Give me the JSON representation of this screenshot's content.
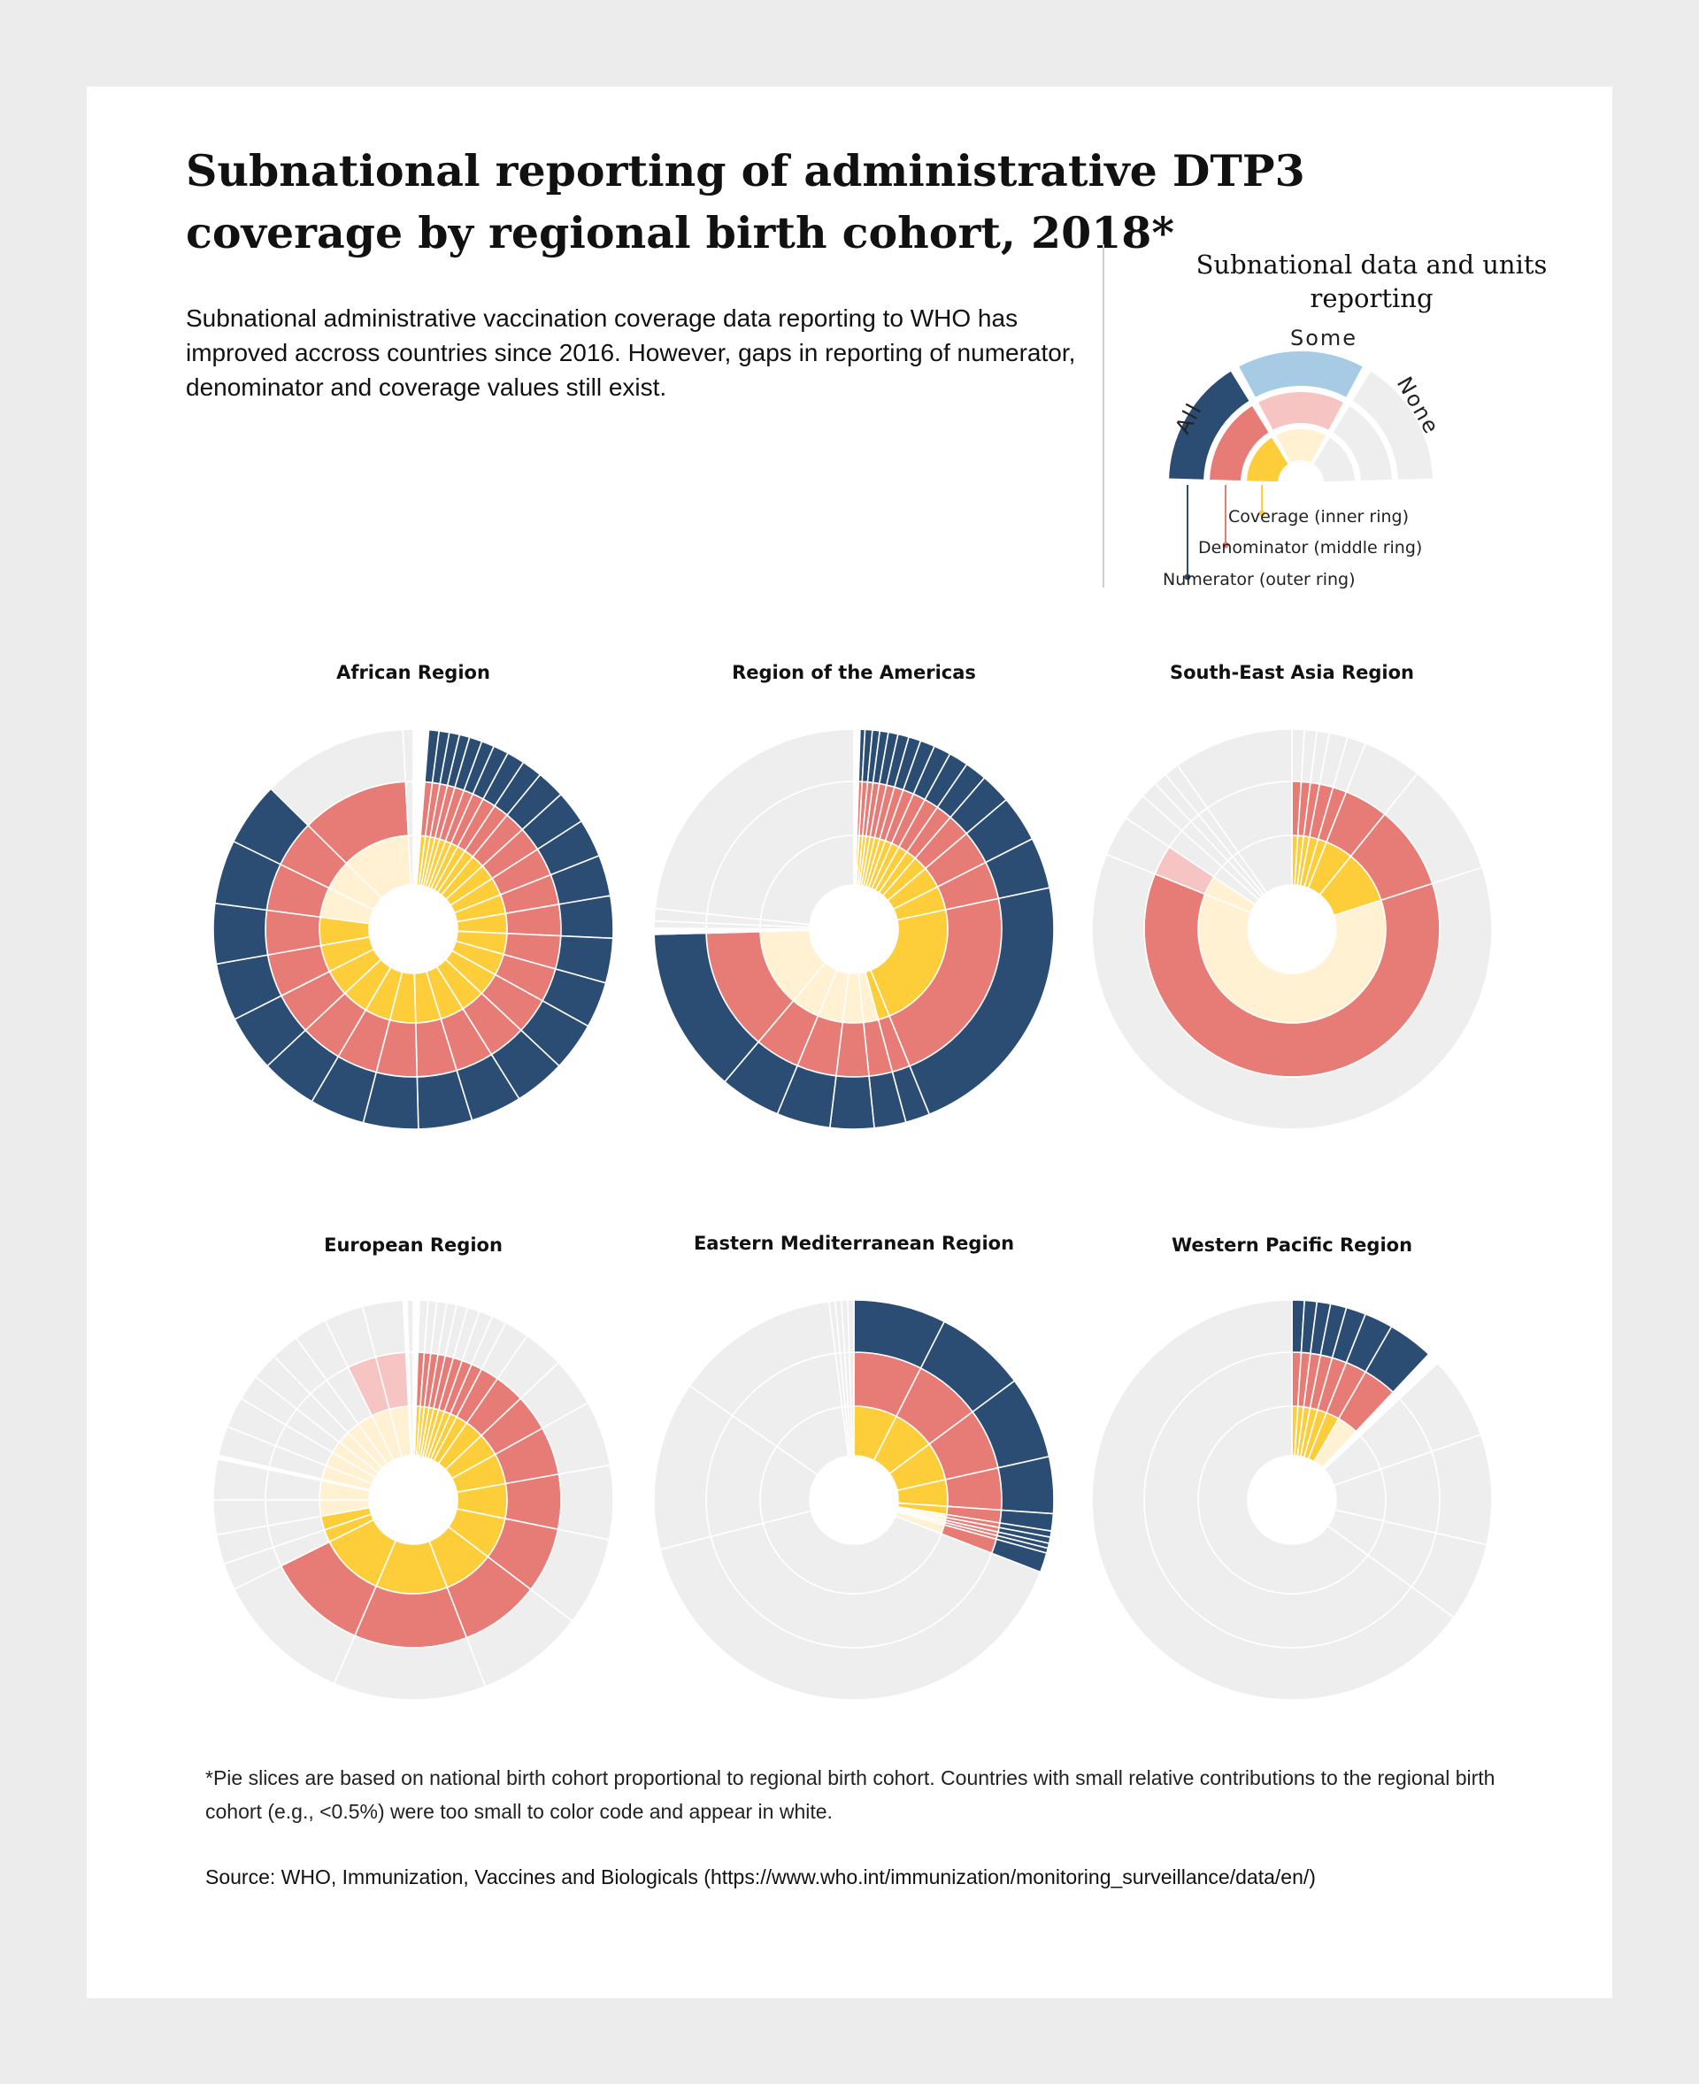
{
  "header": {
    "title": "Subnational reporting of administrative DTP3 coverage by regional birth cohort, 2018*",
    "subtitle": "Subnational administrative vaccination coverage data reporting to WHO has improved accross countries since 2016. However, gaps in reporting of numerator, denominator and coverage values still exist."
  },
  "legend": {
    "title": "Subnational data and units reporting",
    "categories": {
      "all": "All",
      "some": "Some",
      "none": "None"
    },
    "rings": {
      "inner": "Coverage (inner ring)",
      "middle": "Denominator (middle ring)",
      "outer": "Numerator (outer ring)"
    }
  },
  "colors": {
    "outer_all": "#2b4c73",
    "outer_some": "#a7cbe5",
    "middle_all": "#e77b75",
    "middle_some": "#f7c4c4",
    "inner_all": "#fdcd3a",
    "inner_some": "#fff1d1",
    "none": "#eeeeee",
    "gap": "#ffffff"
  },
  "chart_data": [
    {
      "type": "sunburst",
      "title": "African Region",
      "slice_percent": [
        1.2,
        0.8,
        0.8,
        0.8,
        0.8,
        1,
        1,
        1.2,
        1.4,
        1.6,
        2.2,
        2.6,
        3,
        3.2,
        3.3,
        3.5,
        3.6,
        3.8,
        4,
        4,
        4.2,
        4.3,
        4.3,
        4.4,
        4.4,
        4.5,
        4.7,
        5,
        5,
        11.4,
        0.8
      ],
      "outer": [
        "g",
        "a",
        "a",
        "a",
        "a",
        "a",
        "a",
        "a",
        "a",
        "a",
        "a",
        "a",
        "a",
        "a",
        "a",
        "a",
        "a",
        "a",
        "a",
        "a",
        "a",
        "a",
        "a",
        "a",
        "a",
        "a",
        "a",
        "a",
        "a",
        "n",
        "n"
      ],
      "middle": [
        "g",
        "a",
        "a",
        "a",
        "a",
        "a",
        "a",
        "a",
        "a",
        "a",
        "a",
        "a",
        "a",
        "a",
        "a",
        "a",
        "a",
        "a",
        "a",
        "a",
        "a",
        "a",
        "a",
        "a",
        "a",
        "a",
        "a",
        "a",
        "a",
        "a",
        "n"
      ],
      "inner": [
        "g",
        "a",
        "a",
        "a",
        "a",
        "a",
        "a",
        "a",
        "a",
        "a",
        "a",
        "a",
        "a",
        "a",
        "a",
        "a",
        "a",
        "a",
        "a",
        "a",
        "a",
        "a",
        "a",
        "a",
        "a",
        "a",
        "a",
        "s",
        "s",
        "s",
        "n"
      ]
    },
    {
      "type": "sunburst",
      "title": "Region of the Americas",
      "slice_percent": [
        0.5,
        0.4,
        0.6,
        0.6,
        0.7,
        0.8,
        0.9,
        1,
        1.2,
        1.4,
        1.6,
        1.8,
        2.5,
        3.8,
        4.2,
        22.5,
        2,
        2.6,
        3.6,
        4.4,
        5,
        13.6,
        0.5,
        0.6,
        1,
        23.7
      ],
      "outer": [
        "g",
        "a",
        "a",
        "a",
        "a",
        "a",
        "a",
        "a",
        "a",
        "a",
        "a",
        "a",
        "a",
        "a",
        "a",
        "a",
        "a",
        "a",
        "a",
        "a",
        "a",
        "a",
        "g",
        "n",
        "n",
        "n"
      ],
      "middle": [
        "g",
        "a",
        "a",
        "a",
        "a",
        "a",
        "a",
        "a",
        "a",
        "a",
        "a",
        "a",
        "a",
        "a",
        "a",
        "a",
        "a",
        "a",
        "a",
        "a",
        "a",
        "a",
        "g",
        "n",
        "n",
        "n"
      ],
      "inner": [
        "g",
        "a",
        "a",
        "a",
        "a",
        "a",
        "a",
        "a",
        "a",
        "a",
        "a",
        "a",
        "a",
        "a",
        "a",
        "a",
        "a",
        "s",
        "s",
        "s",
        "s",
        "s",
        "g",
        "n",
        "n",
        "n"
      ]
    },
    {
      "type": "sunburst",
      "title": "South-East Asia Region",
      "slice_percent": [
        1,
        1,
        1,
        1.5,
        1.5,
        4.8,
        9.2,
        61.1,
        3.3,
        2.2,
        1.4,
        1.1,
        1.2,
        9.7
      ],
      "outer": [
        "n",
        "n",
        "n",
        "n",
        "n",
        "n",
        "n",
        "n",
        "n",
        "n",
        "n",
        "n",
        "n",
        "n"
      ],
      "middle": [
        "a",
        "a",
        "a",
        "a",
        "a",
        "a",
        "a",
        "a",
        "s",
        "n",
        "n",
        "n",
        "n",
        "n"
      ],
      "inner": [
        "a",
        "a",
        "a",
        "a",
        "a",
        "a",
        "a",
        "s",
        "s",
        "n",
        "n",
        "n",
        "n",
        "n"
      ]
    },
    {
      "type": "sunburst",
      "title": "European Region",
      "slice_percent": [
        0.5,
        0.7,
        0.7,
        0.8,
        0.8,
        0.9,
        1,
        1.1,
        1.2,
        2,
        3.3,
        4,
        5.3,
        6,
        7.2,
        8.8,
        12.4,
        11.2,
        2.2,
        2.4,
        2.8,
        3.3,
        0.3,
        2.4,
        2.5,
        2.1,
        2.2,
        2.3,
        2.7,
        3.2,
        3.3,
        0.3,
        0.5
      ],
      "outer": [
        "g",
        "n",
        "n",
        "n",
        "n",
        "n",
        "n",
        "n",
        "n",
        "n",
        "n",
        "n",
        "n",
        "n",
        "n",
        "n",
        "n",
        "n",
        "n",
        "n",
        "n",
        "n",
        "g",
        "n",
        "n",
        "n",
        "n",
        "n",
        "n",
        "n",
        "n",
        "g",
        "n"
      ],
      "middle": [
        "g",
        "a",
        "a",
        "a",
        "a",
        "a",
        "a",
        "a",
        "a",
        "a",
        "a",
        "a",
        "a",
        "a",
        "a",
        "a",
        "a",
        "a",
        "n",
        "n",
        "n",
        "n",
        "g",
        "n",
        "n",
        "n",
        "n",
        "n",
        "n",
        "s",
        "s",
        "g",
        "n"
      ],
      "inner": [
        "g",
        "a",
        "a",
        "a",
        "a",
        "a",
        "a",
        "a",
        "a",
        "a",
        "a",
        "a",
        "a",
        "a",
        "a",
        "a",
        "a",
        "a",
        "a",
        "a",
        "s",
        "s",
        "g",
        "s",
        "s",
        "s",
        "s",
        "s",
        "s",
        "s",
        "s",
        "g",
        "n"
      ]
    },
    {
      "type": "sunburst",
      "title": "Eastern Mediterranean Region",
      "slice_percent": [
        7.5,
        7.4,
        6.7,
        4.6,
        1.4,
        0.5,
        0.5,
        0.4,
        0.4,
        1.6,
        40.3,
        13.7,
        13.4,
        0.5,
        0.5,
        0.5,
        0.5
      ],
      "outer": [
        "a",
        "a",
        "a",
        "a",
        "a",
        "a",
        "a",
        "a",
        "a",
        "a",
        "n",
        "n",
        "n",
        "n",
        "n",
        "n",
        "n"
      ],
      "middle": [
        "a",
        "a",
        "a",
        "a",
        "a",
        "a",
        "a",
        "a",
        "a",
        "a",
        "n",
        "n",
        "n",
        "n",
        "n",
        "n",
        "n"
      ],
      "inner": [
        "a",
        "a",
        "a",
        "a",
        "a",
        "s",
        "s",
        "s",
        "s",
        "s",
        "n",
        "n",
        "n",
        "n",
        "n",
        "n",
        "n"
      ]
    },
    {
      "type": "sunburst",
      "title": "Western Pacific Region",
      "slice_percent": [
        1,
        1,
        1.1,
        1.3,
        1.6,
        2.3,
        3.7,
        1,
        6.7,
        8.9,
        6.4,
        65
      ],
      "outer": [
        "a",
        "a",
        "a",
        "a",
        "a",
        "a",
        "a",
        "g",
        "n",
        "n",
        "n",
        "n"
      ],
      "middle": [
        "a",
        "a",
        "a",
        "a",
        "a",
        "a",
        "a",
        "g",
        "n",
        "n",
        "n",
        "n"
      ],
      "inner": [
        "a",
        "a",
        "a",
        "a",
        "a",
        "a",
        "s",
        "g",
        "n",
        "n",
        "n",
        "n"
      ]
    }
  ],
  "footer": {
    "note": "*Pie slices are based on national birth cohort proportional to regional birth cohort. Countries with small relative contributions to the regional birth cohort (e.g., <0.5%) were too small to color code and appear in white.",
    "source": "Source: WHO, Immunization, Vaccines and Biologicals (https://www.who.int/immunization/monitoring_surveillance/data/en/)"
  }
}
